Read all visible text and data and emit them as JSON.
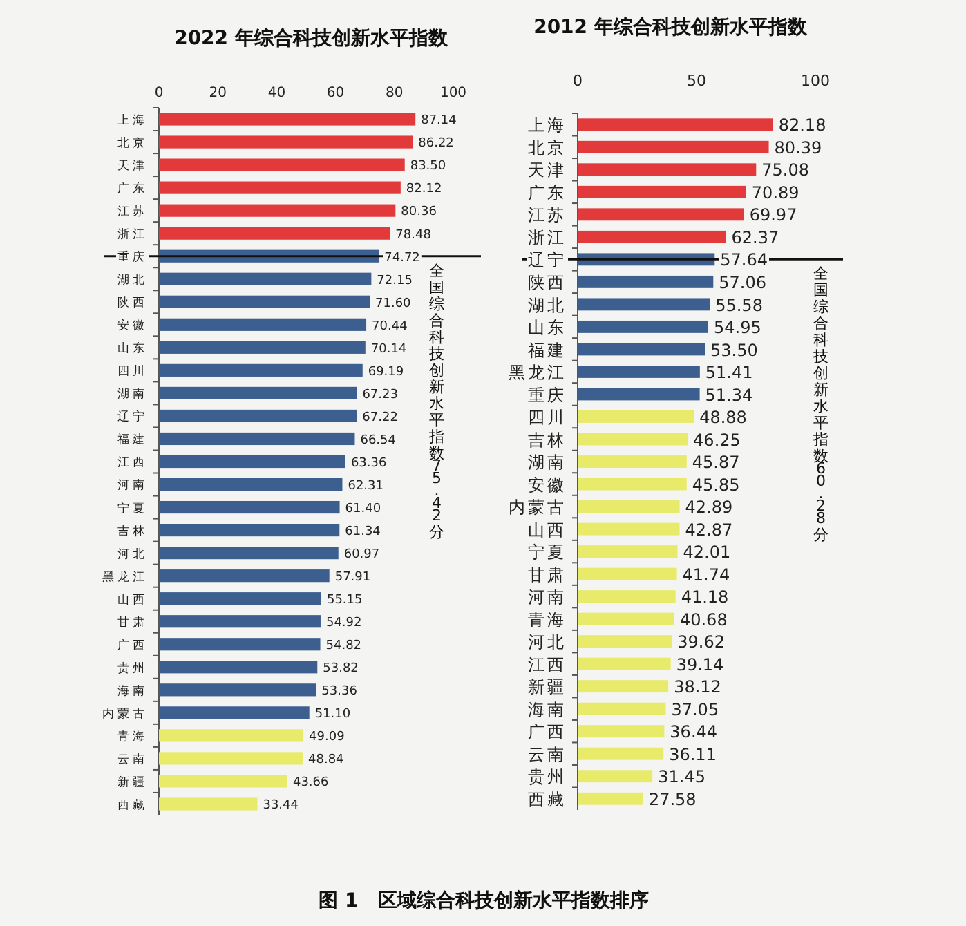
{
  "chart_data": [
    {
      "type": "bar",
      "orientation": "horizontal",
      "title": "2022 年综合科技创新水平指数",
      "categories": [
        "上海",
        "北京",
        "天津",
        "广东",
        "江苏",
        "浙江",
        "重庆",
        "湖北",
        "陕西",
        "安徽",
        "山东",
        "四川",
        "湖南",
        "辽宁",
        "福建",
        "江西",
        "河南",
        "宁夏",
        "吉林",
        "河北",
        "黑龙江",
        "山西",
        "甘肃",
        "广西",
        "贵州",
        "海南",
        "内蒙古",
        "青海",
        "云南",
        "新疆",
        "西藏"
      ],
      "values": [
        87.14,
        86.22,
        83.5,
        82.12,
        80.36,
        78.48,
        74.72,
        72.15,
        71.6,
        70.44,
        70.14,
        69.19,
        67.23,
        67.22,
        66.54,
        63.36,
        62.31,
        61.4,
        61.34,
        60.97,
        57.91,
        55.15,
        54.92,
        54.82,
        53.82,
        53.36,
        51.1,
        49.09,
        48.84,
        43.66,
        33.44
      ],
      "value_labels": [
        "87.14",
        "86.22",
        "83.50",
        "82.12",
        "80.36",
        "78.48",
        "74.72",
        "72.15",
        "71.60",
        "70.44",
        "70.14",
        "69.19",
        "67.23",
        "67.22",
        "66.54",
        "63.36",
        "62.31",
        "61.40",
        "61.34",
        "60.97",
        "57.91",
        "55.15",
        "54.92",
        "54.82",
        "53.82",
        "53.36",
        "51.10",
        "49.09",
        "48.84",
        "43.66",
        "33.44"
      ],
      "colors": [
        "#e2393a",
        "#e2393a",
        "#e2393a",
        "#e2393a",
        "#e2393a",
        "#e2393a",
        "#3d5f8f",
        "#3d5f8f",
        "#3d5f8f",
        "#3d5f8f",
        "#3d5f8f",
        "#3d5f8f",
        "#3d5f8f",
        "#3d5f8f",
        "#3d5f8f",
        "#3d5f8f",
        "#3d5f8f",
        "#3d5f8f",
        "#3d5f8f",
        "#3d5f8f",
        "#3d5f8f",
        "#3d5f8f",
        "#3d5f8f",
        "#3d5f8f",
        "#3d5f8f",
        "#3d5f8f",
        "#3d5f8f",
        "#e8ea6a",
        "#e8ea6a",
        "#e8ea6a",
        "#e8ea6a"
      ],
      "xlim": [
        0,
        100
      ],
      "xticks": [
        0,
        20,
        40,
        60,
        80,
        100
      ],
      "ref_lines": [
        {
          "axis": "y",
          "value": "重庆",
          "label": "全国综合科技创新水平指数 75.42 分",
          "color": "#111111"
        }
      ],
      "annotations": [
        "图 1　区域综合科技创新水平指数排序"
      ]
    },
    {
      "type": "bar",
      "orientation": "horizontal",
      "title": "2012 年综合科技创新水平指数",
      "categories": [
        "上海",
        "北京",
        "天津",
        "广东",
        "江苏",
        "浙江",
        "辽宁",
        "陕西",
        "湖北",
        "山东",
        "福建",
        "黑龙江",
        "重庆",
        "四川",
        "吉林",
        "湖南",
        "安徽",
        "内蒙古",
        "山西",
        "宁夏",
        "甘肃",
        "河南",
        "青海",
        "河北",
        "江西",
        "新疆",
        "海南",
        "广西",
        "云南",
        "贵州",
        "西藏"
      ],
      "values": [
        82.18,
        80.39,
        75.08,
        70.89,
        69.97,
        62.37,
        57.64,
        57.06,
        55.58,
        54.95,
        53.5,
        51.41,
        51.34,
        48.88,
        46.25,
        45.87,
        45.85,
        42.89,
        42.87,
        42.01,
        41.74,
        41.18,
        40.68,
        39.62,
        39.14,
        38.12,
        37.05,
        36.44,
        36.11,
        31.45,
        27.58
      ],
      "value_labels": [
        "82.18",
        "80.39",
        "75.08",
        "70.89",
        "69.97",
        "62.37",
        "57.64",
        "57.06",
        "55.58",
        "54.95",
        "53.50",
        "51.41",
        "51.34",
        "48.88",
        "46.25",
        "45.87",
        "45.85",
        "42.89",
        "42.87",
        "42.01",
        "41.74",
        "41.18",
        "40.68",
        "39.62",
        "39.14",
        "38.12",
        "37.05",
        "36.44",
        "36.11",
        "31.45",
        "27.58"
      ],
      "colors": [
        "#e2393a",
        "#e2393a",
        "#e2393a",
        "#e2393a",
        "#e2393a",
        "#e2393a",
        "#3d5f8f",
        "#3d5f8f",
        "#3d5f8f",
        "#3d5f8f",
        "#3d5f8f",
        "#3d5f8f",
        "#3d5f8f",
        "#e8ea6a",
        "#e8ea6a",
        "#e8ea6a",
        "#e8ea6a",
        "#e8ea6a",
        "#e8ea6a",
        "#e8ea6a",
        "#e8ea6a",
        "#e8ea6a",
        "#e8ea6a",
        "#e8ea6a",
        "#e8ea6a",
        "#e8ea6a",
        "#e8ea6a",
        "#e8ea6a",
        "#e8ea6a",
        "#e8ea6a",
        "#e8ea6a"
      ],
      "xlim": [
        0,
        100
      ],
      "xticks": [
        0,
        50,
        100
      ],
      "ref_lines": [
        {
          "axis": "y",
          "value": "辽宁",
          "label": "全国综合科技创新水平指数 60.28 分",
          "color": "#111111"
        }
      ]
    }
  ]
}
